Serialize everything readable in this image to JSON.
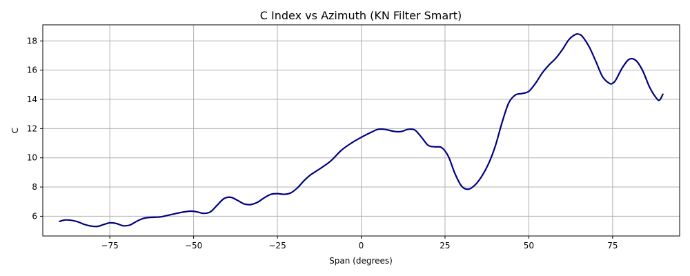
{
  "chart_data": {
    "type": "line",
    "title": "C Index vs Azimuth (KN Filter Smart)",
    "xlabel": "Span (degrees)",
    "ylabel": "C",
    "xlim": [
      -95,
      95
    ],
    "ylim": [
      4.65,
      19.1
    ],
    "x_ticks": [
      -75,
      -50,
      -25,
      0,
      25,
      50,
      75
    ],
    "x_tick_labels": [
      "−75",
      "−50",
      "−25",
      "0",
      "25",
      "50",
      "75"
    ],
    "y_ticks": [
      6,
      8,
      10,
      12,
      14,
      16,
      18
    ],
    "y_tick_labels": [
      "6",
      "8",
      "10",
      "12",
      "14",
      "16",
      "18"
    ],
    "grid": true,
    "series": [
      {
        "color": "#000080",
        "x": [
          -90,
          -88,
          -85,
          -82,
          -79,
          -77,
          -75,
          -73,
          -71,
          -69,
          -67,
          -65,
          -63,
          -60,
          -57,
          -54,
          -51,
          -49,
          -47,
          -45,
          -43,
          -41,
          -39,
          -37,
          -35,
          -33,
          -31,
          -29,
          -27,
          -25,
          -23,
          -21,
          -19,
          -17,
          -15,
          -12,
          -9,
          -6,
          -3,
          0,
          3,
          5,
          7,
          10,
          12,
          14,
          16,
          18,
          20,
          22,
          24,
          26,
          28,
          30,
          32,
          34,
          36,
          38,
          40,
          42,
          44,
          46,
          48,
          50,
          52,
          54,
          56,
          58,
          60,
          62,
          64,
          65,
          66,
          68,
          70,
          72,
          74,
          75,
          76,
          78,
          80,
          82,
          84,
          86,
          88,
          89,
          90
        ],
        "y": [
          5.65,
          5.75,
          5.65,
          5.4,
          5.3,
          5.42,
          5.55,
          5.5,
          5.35,
          5.4,
          5.65,
          5.85,
          5.92,
          5.95,
          6.1,
          6.25,
          6.35,
          6.3,
          6.2,
          6.3,
          6.75,
          7.2,
          7.3,
          7.1,
          6.85,
          6.8,
          6.95,
          7.25,
          7.5,
          7.55,
          7.5,
          7.6,
          7.95,
          8.45,
          8.85,
          9.3,
          9.8,
          10.5,
          11.0,
          11.4,
          11.75,
          11.95,
          11.95,
          11.8,
          11.8,
          11.95,
          11.9,
          11.4,
          10.85,
          10.75,
          10.7,
          10.1,
          8.9,
          8.05,
          7.85,
          8.15,
          8.75,
          9.6,
          10.8,
          12.4,
          13.75,
          14.3,
          14.4,
          14.55,
          15.1,
          15.8,
          16.35,
          16.8,
          17.4,
          18.1,
          18.45,
          18.45,
          18.3,
          17.6,
          16.6,
          15.55,
          15.1,
          15.1,
          15.35,
          16.2,
          16.75,
          16.65,
          15.95,
          14.85,
          14.1,
          13.95,
          14.35
        ]
      }
    ]
  }
}
